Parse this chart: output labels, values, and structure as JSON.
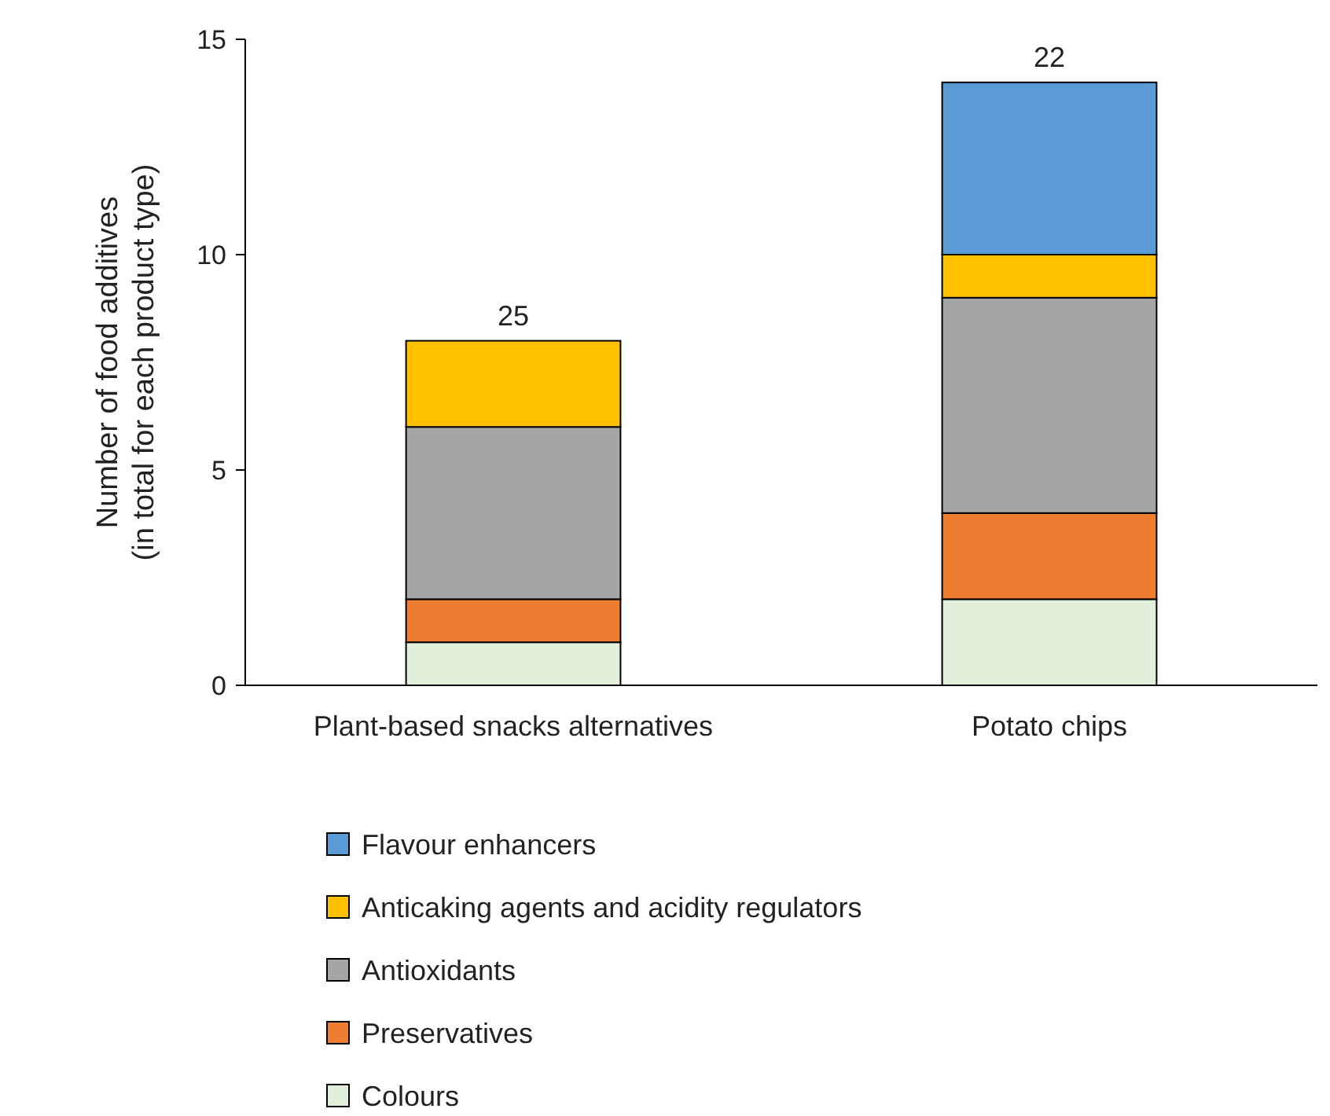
{
  "chart_data": {
    "type": "bar",
    "stacked": true,
    "ylabel": "Number of food additives\n(in total for each product type)",
    "categories": [
      "Plant-based snacks alternatives",
      "Potato chips"
    ],
    "series": [
      {
        "name": "Colours",
        "color": "#e2efda",
        "values": [
          1,
          2
        ]
      },
      {
        "name": "Preservatives",
        "color": "#ed7d31",
        "values": [
          1,
          2
        ]
      },
      {
        "name": "Antioxidants",
        "color": "#a5a5a5",
        "values": [
          4,
          5
        ]
      },
      {
        "name": "Anticaking agents and acidity regulators",
        "color": "#ffc000",
        "values": [
          2,
          1
        ]
      },
      {
        "name": "Flavour enhancers",
        "color": "#5b9bd5",
        "values": [
          0,
          4
        ]
      }
    ],
    "annotations": [
      {
        "text": "25",
        "x": "Plant-based snacks alternatives",
        "y": 8
      },
      {
        "text": "22",
        "x": "Potato chips",
        "y": 14
      }
    ],
    "ylim": [
      0,
      15
    ],
    "yticks": [
      0,
      5,
      10,
      15
    ],
    "grid": false,
    "legend": "bottom"
  }
}
